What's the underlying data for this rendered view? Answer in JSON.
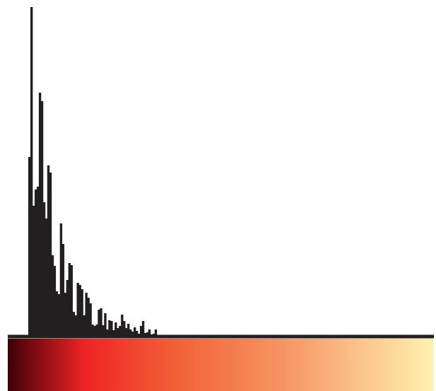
{
  "chart_data": {
    "type": "bar",
    "title": "",
    "xlabel": "",
    "ylabel": "",
    "bar_color": "#231f20",
    "grid": false,
    "legend": "none",
    "ylim": [
      0,
      466
    ],
    "colorbar": {
      "stops": [
        {
          "offset": 0.0,
          "color": "#3d0005"
        },
        {
          "offset": 0.18,
          "color": "#ee2326"
        },
        {
          "offset": 0.4,
          "color": "#f26238"
        },
        {
          "offset": 0.68,
          "color": "#f79c6a"
        },
        {
          "offset": 1.0,
          "color": "#fff2b0"
        }
      ]
    },
    "values": [
      254,
      466,
      185,
      208,
      212,
      345,
      333,
      190,
      167,
      242,
      232,
      115,
      100,
      64,
      60,
      160,
      131,
      62,
      80,
      104,
      101,
      35,
      30,
      76,
      73,
      67,
      30,
      62,
      55,
      47,
      17,
      15,
      17,
      38,
      40,
      16,
      33,
      10,
      23,
      22,
      9,
      20,
      12,
      15,
      31,
      22,
      12,
      18,
      10,
      7,
      13,
      8,
      4,
      15,
      22,
      5,
      6,
      10,
      3,
      4,
      10,
      2,
      1,
      1,
      1,
      1,
      1,
      1,
      1,
      1,
      1,
      1,
      1,
      1,
      1,
      1,
      1,
      1,
      1,
      1,
      1,
      1,
      1,
      1,
      1,
      1,
      1,
      1,
      1,
      1,
      1,
      1,
      1,
      1,
      1,
      1,
      1,
      1,
      1,
      1,
      1,
      1,
      1,
      1,
      1,
      1,
      1,
      1,
      1,
      1,
      1,
      1,
      1,
      1,
      1
    ]
  }
}
